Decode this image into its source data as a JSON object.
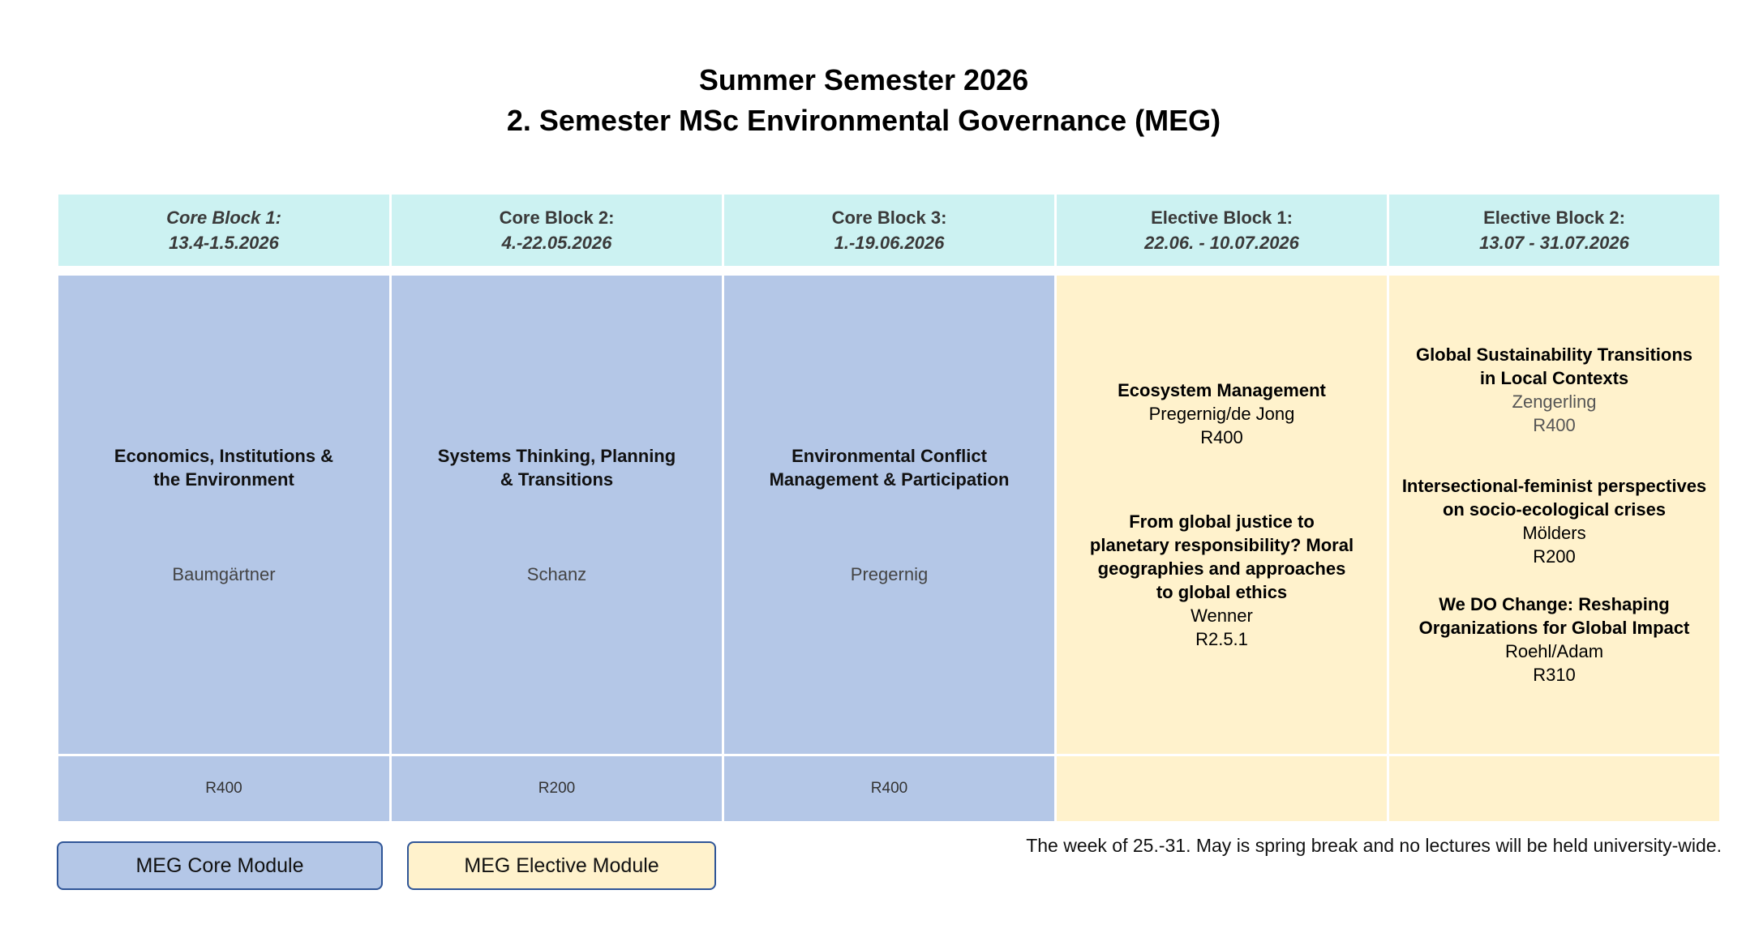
{
  "header": {
    "title": "Summer Semester 2026",
    "subtitle": "2. Semester MSc Environmental Governance (MEG)"
  },
  "blocks": [
    {
      "name": "Core Block 1:",
      "dates": "13.4-1.5.2026",
      "type": "core",
      "course": {
        "title_line1": "Economics, Institutions &",
        "title_line2": "the Environment",
        "lecturer": "Baumgärtner"
      },
      "room": "R400"
    },
    {
      "name": "Core Block 2:",
      "dates": "4.-22.05.2026",
      "type": "core",
      "course": {
        "title_line1": "Systems Thinking, Planning",
        "title_line2": "& Transitions",
        "lecturer": "Schanz"
      },
      "room": "R200"
    },
    {
      "name": "Core Block 3:",
      "dates": "1.-19.06.2026",
      "type": "core",
      "course": {
        "title_line1": "Environmental Conflict",
        "title_line2": "Management &  Participation",
        "lecturer": "Pregernig"
      },
      "room": "R400"
    },
    {
      "name": "Elective Block 1:",
      "dates": "22.06. - 10.07.2026",
      "type": "elective",
      "courses": [
        {
          "title": [
            "Ecosystem Management"
          ],
          "lecturer": "Pregernig/de Jong",
          "room": "R400"
        },
        {
          "title": [
            "From global justice to",
            "planetary responsibility? Moral",
            "geographies and approaches",
            "to global ethics"
          ],
          "lecturer": "Wenner",
          "room": "R2.5.1"
        }
      ]
    },
    {
      "name": "Elective Block 2:",
      "dates": "13.07 - 31.07.2026",
      "type": "elective",
      "courses": [
        {
          "title": [
            "Global Sustainability Transitions",
            "in Local Contexts"
          ],
          "lecturer": "Zengerling",
          "room": "R400"
        },
        {
          "title": [
            "Intersectional-feminist perspectives",
            "on socio-ecological crises"
          ],
          "lecturer": "Mölders",
          "room": "R200"
        },
        {
          "title": [
            "We DO Change: Reshaping",
            "Organizations for Global Impact"
          ],
          "lecturer": "Roehl/Adam",
          "room": "R310"
        }
      ]
    }
  ],
  "legend": {
    "core": "MEG Core Module",
    "elective": "MEG Elective Module"
  },
  "note": "The week of 25.-31. May is spring break and no lectures will be held university-wide.",
  "colors": {
    "header_bg": "#ccf2f2",
    "core_bg": "#b4c7e7",
    "elective_bg": "#fff2cc",
    "legend_border": "#2f5597"
  }
}
